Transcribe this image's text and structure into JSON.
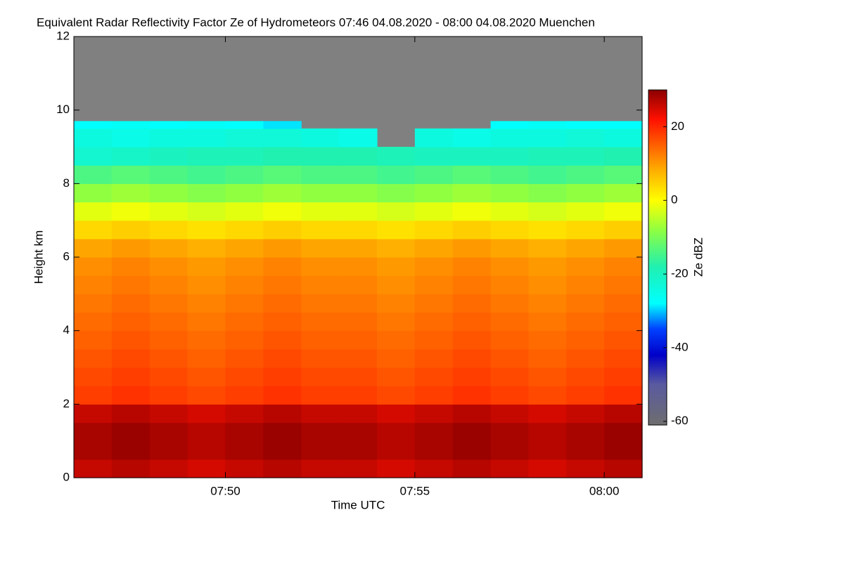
{
  "chart_data": {
    "type": "heatmap",
    "title": "Equivalent Radar Reflectivity Factor Ze of Hydrometeors   07:46 04.08.2020 - 08:00 04.08.2020 Muenchen",
    "x_label": "Time UTC",
    "y_label": "Height km",
    "colorbar_label": "Ze dBZ",
    "x": [
      "07:46",
      "07:47",
      "07:48",
      "07:49",
      "07:50",
      "07:51",
      "07:52",
      "07:53",
      "07:54",
      "07:55",
      "07:56",
      "07:57",
      "07:58",
      "07:59",
      "08:00"
    ],
    "xlim": [
      "07:46",
      "08:01"
    ],
    "xticks": [
      "07:50",
      "07:55",
      "08:00"
    ],
    "y": [
      0,
      0.5,
      1,
      1.5,
      2,
      2.5,
      3,
      3.5,
      4,
      4.5,
      5,
      5.5,
      6,
      6.5,
      7,
      7.5,
      8,
      8.5,
      9,
      9.5,
      9.7
    ],
    "ylim": [
      0,
      12
    ],
    "yticks": [
      0,
      2,
      4,
      6,
      8,
      10,
      12
    ],
    "zlim": [
      -61,
      30
    ],
    "zticks": [
      -60,
      -40,
      -20,
      0,
      20
    ],
    "background_color": "#808080",
    "colorscale": [
      {
        "value": -61,
        "color": "#6e6e6e"
      },
      {
        "value": -50,
        "color": "#5a5aa0"
      },
      {
        "value": -42,
        "color": "#0000c8"
      },
      {
        "value": -35,
        "color": "#0040ff"
      },
      {
        "value": -28,
        "color": "#00ffff"
      },
      {
        "value": -18,
        "color": "#20f0b0"
      },
      {
        "value": -8,
        "color": "#90ff40"
      },
      {
        "value": 0,
        "color": "#ffff00"
      },
      {
        "value": 8,
        "color": "#ffb000"
      },
      {
        "value": 15,
        "color": "#ff6000"
      },
      {
        "value": 22,
        "color": "#ff1000"
      },
      {
        "value": 30,
        "color": "#8b0000"
      }
    ],
    "values": [
      [
        26,
        27,
        26,
        25,
        26,
        27,
        26,
        26,
        25,
        26,
        27,
        26,
        25,
        26,
        27
      ],
      [
        28,
        29,
        28,
        27,
        28,
        29,
        28,
        28,
        27,
        28,
        29,
        28,
        27,
        28,
        29
      ],
      [
        28,
        29,
        28,
        27,
        28,
        29,
        28,
        28,
        27,
        28,
        29,
        28,
        27,
        28,
        29
      ],
      [
        26,
        27,
        26,
        25,
        26,
        27,
        26,
        26,
        25,
        26,
        27,
        26,
        25,
        26,
        27
      ],
      [
        18,
        19,
        18,
        17,
        18,
        19,
        18,
        18,
        17,
        18,
        19,
        18,
        17,
        18,
        19
      ],
      [
        17,
        18,
        17,
        16,
        17,
        18,
        17,
        17,
        16,
        17,
        18,
        17,
        16,
        17,
        18
      ],
      [
        16,
        17,
        16,
        15,
        16,
        17,
        16,
        16,
        15,
        16,
        17,
        16,
        15,
        16,
        17
      ],
      [
        15,
        16,
        15,
        14,
        15,
        16,
        15,
        15,
        14,
        15,
        16,
        15,
        14,
        15,
        16
      ],
      [
        14,
        15,
        14,
        13,
        14,
        15,
        14,
        14,
        13,
        14,
        15,
        14,
        13,
        14,
        15
      ],
      [
        13,
        14,
        13,
        12,
        13,
        14,
        13,
        13,
        12,
        13,
        14,
        13,
        12,
        13,
        14
      ],
      [
        12,
        13,
        12,
        11,
        12,
        13,
        12,
        12,
        11,
        12,
        13,
        12,
        11,
        12,
        13
      ],
      [
        11,
        12,
        11,
        10,
        11,
        12,
        11,
        11,
        10,
        11,
        12,
        11,
        10,
        11,
        12
      ],
      [
        9,
        10,
        9,
        8,
        9,
        10,
        9,
        9,
        8,
        9,
        10,
        9,
        8,
        9,
        10
      ],
      [
        4,
        5,
        4,
        3,
        4,
        5,
        4,
        4,
        3,
        4,
        5,
        4,
        3,
        4,
        5
      ],
      [
        -2,
        -1,
        -2,
        -3,
        -2,
        -1,
        -2,
        -2,
        -3,
        -2,
        -1,
        -2,
        -3,
        -2,
        -1
      ],
      [
        -8,
        -7,
        -8,
        -9,
        -8,
        -7,
        -8,
        -8,
        -9,
        -8,
        -7,
        -8,
        -9,
        -8,
        -7
      ],
      [
        -14,
        -13,
        -14,
        -15,
        -14,
        -13,
        -14,
        -14,
        -15,
        -14,
        -13,
        -14,
        -15,
        -14,
        -13
      ],
      [
        -22,
        -21,
        -20,
        -19,
        -19,
        -18,
        -18,
        -18,
        -19,
        -20,
        -20,
        -20,
        -19,
        -19,
        -18
      ],
      [
        -24,
        -25,
        -24,
        -24,
        -23,
        -23,
        -24,
        -25,
        null,
        -24,
        -25,
        -24,
        -24,
        -23,
        -24
      ],
      [
        -28,
        -27,
        -28,
        -27,
        -28,
        -29,
        null,
        null,
        null,
        null,
        null,
        -28,
        -27,
        -28,
        -28
      ]
    ]
  }
}
